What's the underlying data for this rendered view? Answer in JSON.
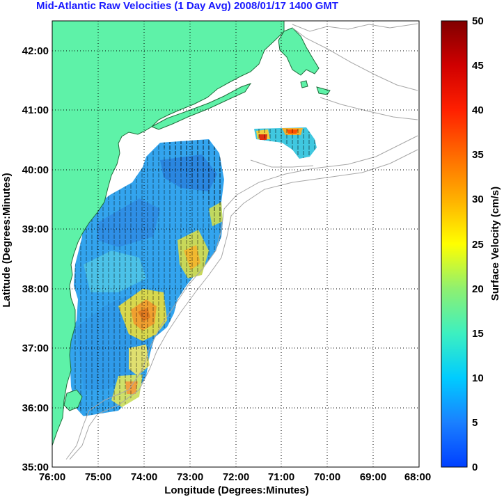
{
  "title": "Mid-Atlantic Raw Velocities (1 Day Avg) 2008/01/17 1400 GMT",
  "axes": {
    "xlabel": "Longitude (Degrees:Minutes)",
    "ylabel": "Latitude (Degrees:Minutes)",
    "xticks": [
      "76:00",
      "75:00",
      "74:00",
      "73:00",
      "72:00",
      "71:00",
      "70:00",
      "69:00",
      "68:00"
    ],
    "yticks": [
      "35:00",
      "36:00",
      "37:00",
      "38:00",
      "39:00",
      "40:00",
      "41:00",
      "42:00"
    ]
  },
  "colorbar": {
    "label": "Surface Velocity (cm/s)",
    "ticks": [
      "0",
      "5",
      "10",
      "15",
      "20",
      "25",
      "30",
      "35",
      "40",
      "45",
      "50"
    ]
  },
  "colors": {
    "land": "#5ef2a8",
    "coast": "#1f6b3a",
    "bathymetry": "#a6a6a6",
    "title": "#1a1aff",
    "grid": "#000000"
  }
}
